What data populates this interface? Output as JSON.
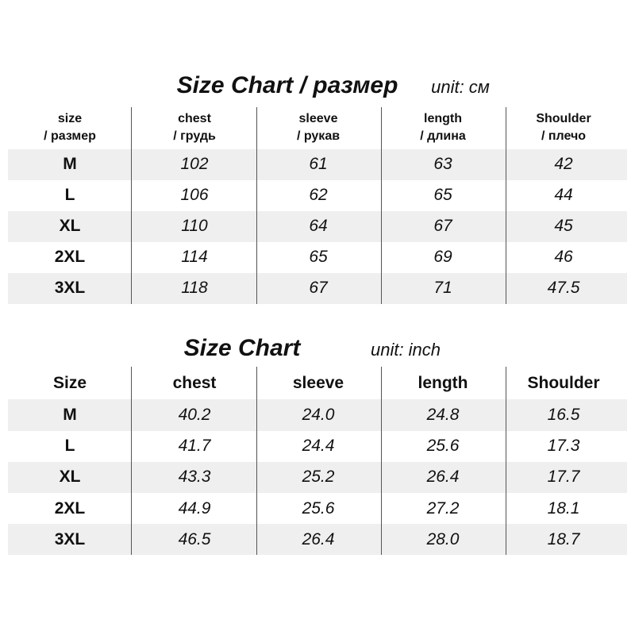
{
  "tables": [
    {
      "title": "Size Chart / размер",
      "unit": "unit: см",
      "header": [
        [
          "size",
          "/ размер"
        ],
        [
          "chest",
          "/ грудь"
        ],
        [
          "sleeve",
          "/ рукав"
        ],
        [
          "length",
          "/ длина"
        ],
        [
          "Shoulder",
          "/ плечо"
        ]
      ],
      "rows": [
        [
          "M",
          "102",
          "61",
          "63",
          "42"
        ],
        [
          "L",
          "106",
          "62",
          "65",
          "44"
        ],
        [
          "XL",
          "110",
          "64",
          "67",
          "45"
        ],
        [
          "2XL",
          "114",
          "65",
          "69",
          "46"
        ],
        [
          "3XL",
          "118",
          "67",
          "71",
          "47.5"
        ]
      ]
    },
    {
      "title": "Size Chart",
      "unit": "unit: inch",
      "header": [
        [
          "Size"
        ],
        [
          "chest"
        ],
        [
          "sleeve"
        ],
        [
          "length"
        ],
        [
          "Shoulder"
        ]
      ],
      "rows": [
        [
          "M",
          "40.2",
          "24.0",
          "24.8",
          "16.5"
        ],
        [
          "L",
          "41.7",
          "24.4",
          "25.6",
          "17.3"
        ],
        [
          "XL",
          "43.3",
          "25.2",
          "26.4",
          "17.7"
        ],
        [
          "2XL",
          "44.9",
          "25.6",
          "27.2",
          "18.1"
        ],
        [
          "3XL",
          "46.5",
          "26.4",
          "28.0",
          "18.7"
        ]
      ]
    }
  ]
}
